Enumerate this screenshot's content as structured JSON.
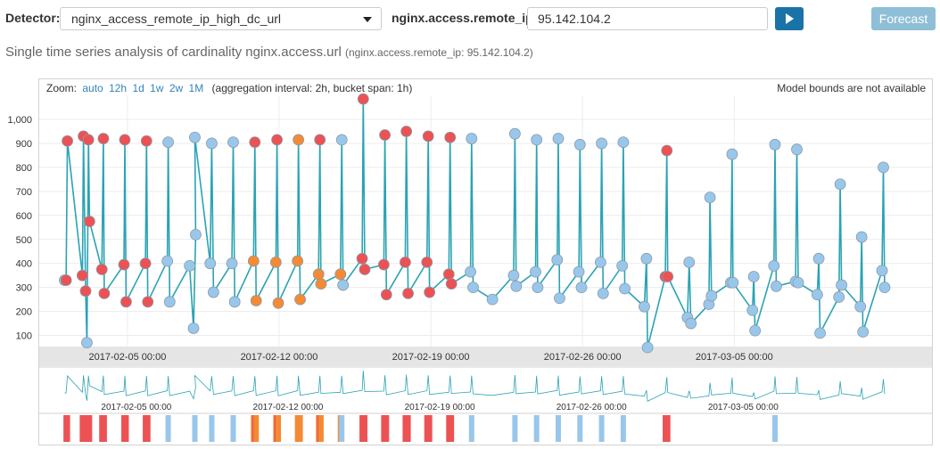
{
  "detector": {
    "label": "Detector:",
    "value": "nginx_access_remote_ip_high_dc_url"
  },
  "entity": {
    "label": "nginx.access.remote_ip:",
    "value": "95.142.104.2"
  },
  "forecast_label": "Forecast",
  "icons": {
    "play": "play-icon",
    "caret": "chevron-down-icon"
  },
  "subtitle": {
    "main": "Single time series analysis of cardinality nginx.access.url",
    "detail": "(nginx.access.remote_ip: 95.142.104.2)"
  },
  "zoom": {
    "label": "Zoom:",
    "options": [
      "auto",
      "12h",
      "1d",
      "1w",
      "2w",
      "1M"
    ],
    "aggregation": "(aggregation interval: 2h, bucket span: 1h)"
  },
  "bounds_notice": "Model bounds are not available",
  "colors": {
    "line": "#2aa3b4",
    "normal": "#99c7eb",
    "critical": "#ec5254",
    "major": "#f48a33",
    "accent": "#1a73a8"
  },
  "chart_data": {
    "type": "line",
    "y_ticks": [
      "1,000",
      "900",
      "800",
      "700",
      "600",
      "500",
      "400",
      "300",
      "200",
      "100"
    ],
    "x_ticks": [
      "2017-02-05 00:00",
      "2017-02-12 00:00",
      "2017-02-19 00:00",
      "2017-02-26 00:00",
      "2017-03-05 00:00"
    ],
    "context_ticks": [
      "2017-02-05 00:00",
      "2017-02-12 00:00",
      "2017-02-19 00:00",
      "2017-02-26 00:00",
      "2017-03-05 00:00"
    ],
    "ylim": [
      50,
      1080
    ],
    "x_range": [
      "2017-02-02 12:00",
      "2017-03-11 00:00"
    ],
    "series": [
      {
        "name": "actual",
        "points": [
          {
            "x": 0.1,
            "y": 330,
            "s": "n"
          },
          {
            "x": 0.17,
            "y": 330,
            "s": "c"
          },
          {
            "x": 0.23,
            "y": 910,
            "s": "c"
          },
          {
            "x": 0.92,
            "y": 350,
            "s": "c"
          },
          {
            "x": 0.97,
            "y": 930,
            "s": "c"
          },
          {
            "x": 1.07,
            "y": 285,
            "s": "c"
          },
          {
            "x": 1.13,
            "y": 70,
            "s": "n"
          },
          {
            "x": 1.2,
            "y": 915,
            "s": "c"
          },
          {
            "x": 1.25,
            "y": 575,
            "s": "c"
          },
          {
            "x": 1.82,
            "y": 375,
            "s": "c"
          },
          {
            "x": 1.89,
            "y": 920,
            "s": "c"
          },
          {
            "x": 1.93,
            "y": 275,
            "s": "c"
          },
          {
            "x": 2.84,
            "y": 395,
            "s": "c"
          },
          {
            "x": 2.88,
            "y": 915,
            "s": "c"
          },
          {
            "x": 2.94,
            "y": 240,
            "s": "c"
          },
          {
            "x": 3.83,
            "y": 400,
            "s": "c"
          },
          {
            "x": 3.88,
            "y": 910,
            "s": "c"
          },
          {
            "x": 3.94,
            "y": 240,
            "s": "c"
          },
          {
            "x": 4.84,
            "y": 410,
            "s": "n"
          },
          {
            "x": 4.88,
            "y": 905,
            "s": "n"
          },
          {
            "x": 4.95,
            "y": 240,
            "s": "n"
          },
          {
            "x": 5.87,
            "y": 390,
            "s": "n"
          },
          {
            "x": 6.05,
            "y": 130,
            "s": "n"
          },
          {
            "x": 6.15,
            "y": 520,
            "s": "n"
          },
          {
            "x": 6.11,
            "y": 925,
            "s": "n"
          },
          {
            "x": 6.82,
            "y": 400,
            "s": "n"
          },
          {
            "x": 6.89,
            "y": 900,
            "s": "n"
          },
          {
            "x": 6.97,
            "y": 280,
            "s": "n"
          },
          {
            "x": 7.82,
            "y": 400,
            "s": "n"
          },
          {
            "x": 7.88,
            "y": 905,
            "s": "n"
          },
          {
            "x": 7.95,
            "y": 240,
            "s": "n"
          },
          {
            "x": 8.82,
            "y": 410,
            "s": "m"
          },
          {
            "x": 8.88,
            "y": 905,
            "s": "c"
          },
          {
            "x": 8.94,
            "y": 245,
            "s": "m"
          },
          {
            "x": 9.85,
            "y": 405,
            "s": "m"
          },
          {
            "x": 9.9,
            "y": 915,
            "s": "c"
          },
          {
            "x": 9.96,
            "y": 235,
            "s": "m"
          },
          {
            "x": 10.85,
            "y": 410,
            "s": "m"
          },
          {
            "x": 10.89,
            "y": 915,
            "s": "m"
          },
          {
            "x": 10.97,
            "y": 250,
            "s": "m"
          },
          {
            "x": 11.82,
            "y": 355,
            "s": "m"
          },
          {
            "x": 11.88,
            "y": 915,
            "s": "c"
          },
          {
            "x": 11.93,
            "y": 315,
            "s": "m"
          },
          {
            "x": 12.83,
            "y": 355,
            "s": "m"
          },
          {
            "x": 12.89,
            "y": 915,
            "s": "n"
          },
          {
            "x": 12.95,
            "y": 310,
            "s": "n"
          },
          {
            "x": 13.83,
            "y": 420,
            "s": "c"
          },
          {
            "x": 13.88,
            "y": 1085,
            "s": "c"
          },
          {
            "x": 13.95,
            "y": 375,
            "s": "c"
          },
          {
            "x": 14.83,
            "y": 395,
            "s": "c"
          },
          {
            "x": 14.88,
            "y": 935,
            "s": "c"
          },
          {
            "x": 14.95,
            "y": 270,
            "s": "c"
          },
          {
            "x": 15.82,
            "y": 405,
            "s": "c"
          },
          {
            "x": 15.87,
            "y": 950,
            "s": "c"
          },
          {
            "x": 15.95,
            "y": 275,
            "s": "c"
          },
          {
            "x": 16.82,
            "y": 405,
            "s": "c"
          },
          {
            "x": 16.88,
            "y": 930,
            "s": "c"
          },
          {
            "x": 16.94,
            "y": 280,
            "s": "c"
          },
          {
            "x": 17.83,
            "y": 355,
            "s": "c"
          },
          {
            "x": 17.89,
            "y": 925,
            "s": "c"
          },
          {
            "x": 17.95,
            "y": 315,
            "s": "c"
          },
          {
            "x": 18.83,
            "y": 365,
            "s": "n"
          },
          {
            "x": 18.88,
            "y": 920,
            "s": "n"
          },
          {
            "x": 18.95,
            "y": 300,
            "s": "n"
          },
          {
            "x": 19.84,
            "y": 250,
            "s": "n"
          },
          {
            "x": 20.82,
            "y": 350,
            "s": "n"
          },
          {
            "x": 20.88,
            "y": 940,
            "s": "n"
          },
          {
            "x": 20.94,
            "y": 305,
            "s": "n"
          },
          {
            "x": 21.83,
            "y": 365,
            "s": "n"
          },
          {
            "x": 21.88,
            "y": 915,
            "s": "n"
          },
          {
            "x": 21.93,
            "y": 300,
            "s": "n"
          },
          {
            "x": 22.83,
            "y": 415,
            "s": "n"
          },
          {
            "x": 22.88,
            "y": 920,
            "s": "n"
          },
          {
            "x": 22.94,
            "y": 255,
            "s": "n"
          },
          {
            "x": 23.83,
            "y": 365,
            "s": "n"
          },
          {
            "x": 23.88,
            "y": 895,
            "s": "n"
          },
          {
            "x": 23.95,
            "y": 300,
            "s": "n"
          },
          {
            "x": 24.83,
            "y": 405,
            "s": "n"
          },
          {
            "x": 24.88,
            "y": 900,
            "s": "n"
          },
          {
            "x": 24.95,
            "y": 275,
            "s": "n"
          },
          {
            "x": 25.83,
            "y": 390,
            "s": "n"
          },
          {
            "x": 25.88,
            "y": 905,
            "s": "n"
          },
          {
            "x": 25.95,
            "y": 295,
            "s": "n"
          },
          {
            "x": 26.85,
            "y": 220,
            "s": "n"
          },
          {
            "x": 26.95,
            "y": 420,
            "s": "n"
          },
          {
            "x": 27.0,
            "y": 50,
            "s": "n"
          },
          {
            "x": 27.82,
            "y": 345,
            "s": "c"
          },
          {
            "x": 27.89,
            "y": 870,
            "s": "c"
          },
          {
            "x": 27.93,
            "y": 345,
            "s": "c"
          },
          {
            "x": 28.84,
            "y": 175,
            "s": "n"
          },
          {
            "x": 28.92,
            "y": 405,
            "s": "n"
          },
          {
            "x": 29.0,
            "y": 150,
            "s": "n"
          },
          {
            "x": 29.83,
            "y": 230,
            "s": "n"
          },
          {
            "x": 29.88,
            "y": 675,
            "s": "n"
          },
          {
            "x": 29.95,
            "y": 265,
            "s": "n"
          },
          {
            "x": 30.84,
            "y": 320,
            "s": "n"
          },
          {
            "x": 30.9,
            "y": 855,
            "s": "n"
          },
          {
            "x": 30.94,
            "y": 320,
            "s": "n"
          },
          {
            "x": 31.84,
            "y": 205,
            "s": "n"
          },
          {
            "x": 31.9,
            "y": 345,
            "s": "n"
          },
          {
            "x": 31.96,
            "y": 120,
            "s": "n"
          },
          {
            "x": 32.83,
            "y": 390,
            "s": "n"
          },
          {
            "x": 32.88,
            "y": 895,
            "s": "n"
          },
          {
            "x": 32.94,
            "y": 305,
            "s": "n"
          },
          {
            "x": 33.83,
            "y": 325,
            "s": "n"
          },
          {
            "x": 33.89,
            "y": 875,
            "s": "n"
          },
          {
            "x": 33.95,
            "y": 320,
            "s": "n"
          },
          {
            "x": 34.83,
            "y": 270,
            "s": "n"
          },
          {
            "x": 34.9,
            "y": 420,
            "s": "n"
          },
          {
            "x": 34.96,
            "y": 110,
            "s": "n"
          },
          {
            "x": 35.83,
            "y": 260,
            "s": "n"
          },
          {
            "x": 35.89,
            "y": 730,
            "s": "n"
          },
          {
            "x": 35.95,
            "y": 310,
            "s": "n"
          },
          {
            "x": 36.82,
            "y": 220,
            "s": "n"
          },
          {
            "x": 36.88,
            "y": 510,
            "s": "n"
          },
          {
            "x": 36.94,
            "y": 115,
            "s": "n"
          },
          {
            "x": 37.82,
            "y": 370,
            "s": "n"
          },
          {
            "x": 37.88,
            "y": 800,
            "s": "n"
          },
          {
            "x": 37.94,
            "y": 300,
            "s": "n"
          }
        ]
      }
    ],
    "point_severity_legend": {
      "n": "normal",
      "c": "critical",
      "m": "major"
    },
    "gridlines": true
  }
}
